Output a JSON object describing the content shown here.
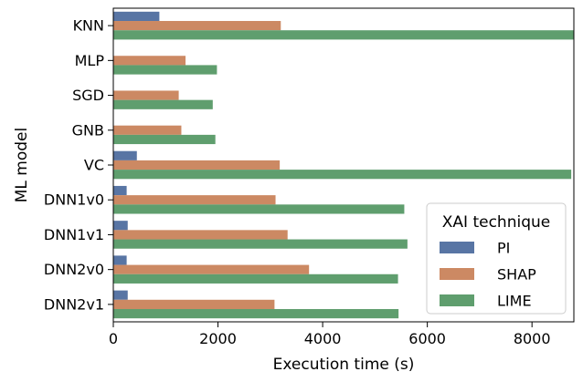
{
  "chart_data": {
    "type": "bar",
    "orientation": "horizontal",
    "xlabel": "Execution time (s)",
    "ylabel": "ML model",
    "xlim": [
      0,
      8800
    ],
    "xticks": [
      0,
      2000,
      4000,
      6000,
      8000
    ],
    "xtick_labels": [
      "0",
      "2000",
      "4000",
      "6000",
      "8000"
    ],
    "grid": false,
    "legend_title": "XAI technique",
    "legend_position": "lower-right",
    "categories": [
      "KNN",
      "MLP",
      "SGD",
      "GNB",
      "VC",
      "DNN1v0",
      "DNN1v1",
      "DNN2v0",
      "DNN2v1"
    ],
    "series": [
      {
        "name": "PI",
        "color": "#5875a4",
        "values": [
          880,
          0,
          0,
          0,
          450,
          255,
          275,
          255,
          275
        ]
      },
      {
        "name": "SHAP",
        "color": "#cc8963",
        "values": [
          3200,
          1380,
          1250,
          1300,
          3180,
          3100,
          3330,
          3740,
          3080
        ]
      },
      {
        "name": "LIME",
        "color": "#5f9e6e",
        "values": [
          8800,
          1980,
          1900,
          1950,
          8750,
          5560,
          5620,
          5440,
          5450
        ]
      }
    ]
  }
}
